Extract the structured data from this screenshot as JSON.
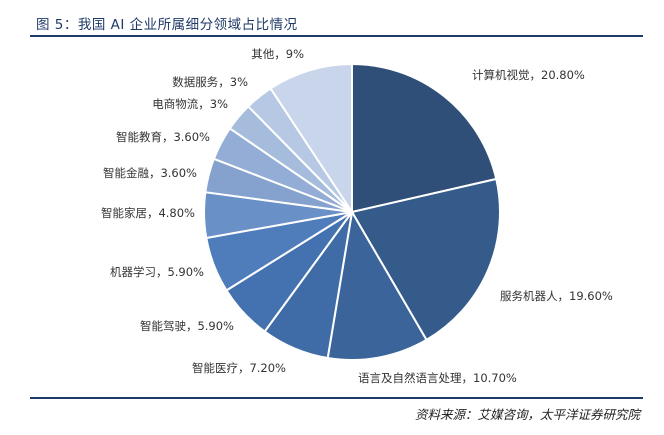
{
  "header": {
    "title": "图 5：我国 AI 企业所属细分领域占比情况"
  },
  "footer": {
    "source": "资料来源：艾媒咨询，太平洋证券研究院"
  },
  "chart_data": {
    "type": "pie",
    "title": "图 5：我国 AI 企业所属细分领域占比情况",
    "slices": [
      {
        "name": "计算机视觉",
        "value": 20.8,
        "label": "计算机视觉，20.80%",
        "color": "#2f4e78"
      },
      {
        "name": "服务机器人",
        "value": 19.6,
        "label": "服务机器人，19.60%",
        "color": "#355b8a"
      },
      {
        "name": "语言及自然语言处理",
        "value": 10.7,
        "label": "语言及自然语言处理，10.70%",
        "color": "#3a649a"
      },
      {
        "name": "智能医疗",
        "value": 7.2,
        "label": "智能医疗，7.20%",
        "color": "#3f6ca6"
      },
      {
        "name": "智能驾驶",
        "value": 5.9,
        "label": "智能驾驶，5.90%",
        "color": "#4472b0"
      },
      {
        "name": "机器学习",
        "value": 5.9,
        "label": "机器学习，5.90%",
        "color": "#4f7dbc"
      },
      {
        "name": "智能家居",
        "value": 4.8,
        "label": "智能家居，4.80%",
        "color": "#6a90c8"
      },
      {
        "name": "智能金融",
        "value": 3.6,
        "label": "智能金融，3.60%",
        "color": "#85a2cf"
      },
      {
        "name": "智能教育",
        "value": 3.6,
        "label": "智能教育，3.60%",
        "color": "#93add6"
      },
      {
        "name": "电商物流",
        "value": 3,
        "label": "电商物流，3%",
        "color": "#a6bcdd"
      },
      {
        "name": "数据服务",
        "value": 3,
        "label": "数据服务，3%",
        "color": "#b6c8e4"
      },
      {
        "name": "其他",
        "value": 9,
        "label": "其他，9%",
        "color": "#c9d5ea"
      }
    ]
  }
}
